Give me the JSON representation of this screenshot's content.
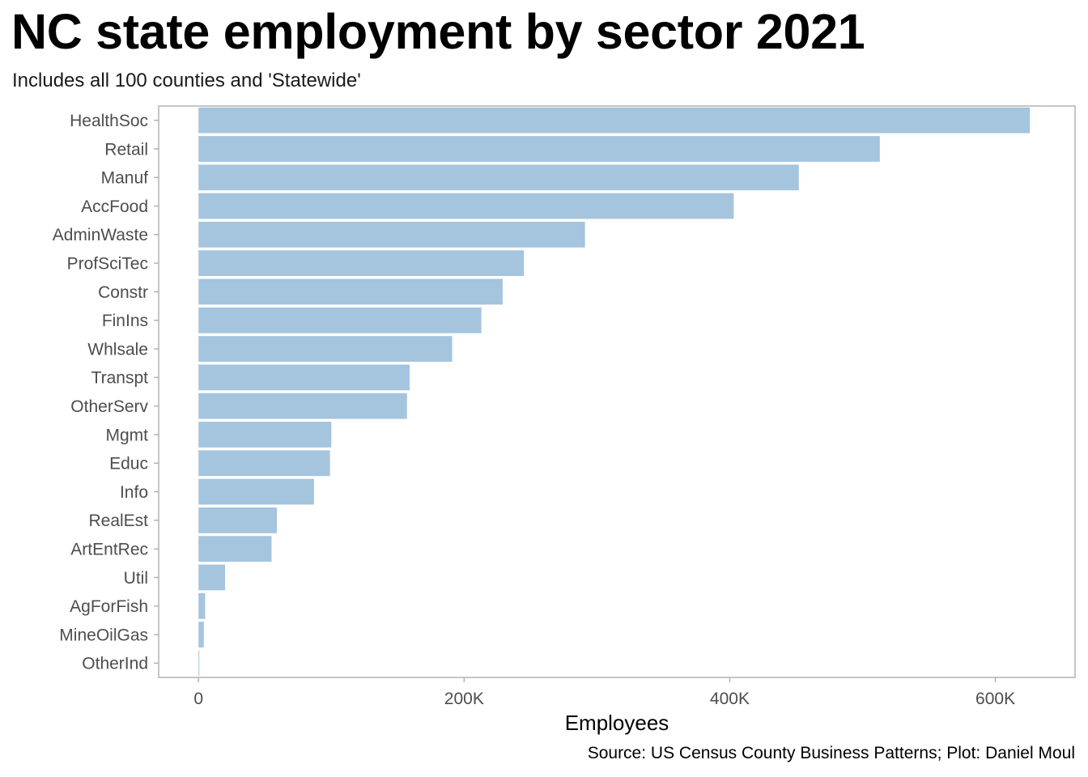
{
  "chart_data": {
    "type": "bar",
    "orientation": "horizontal",
    "title": "NC state employment by sector 2021",
    "subtitle": "Includes all 100 counties and 'Statewide'",
    "xlabel": "Employees",
    "ylabel": "",
    "caption": "Source: US Census County Business Patterns; Plot: Daniel Moul",
    "categories": [
      "HealthSoc",
      "Retail",
      "Manuf",
      "AccFood",
      "AdminWaste",
      "ProfSciTec",
      "Constr",
      "FinIns",
      "Whlsale",
      "Transpt",
      "OtherServ",
      "Mgmt",
      "Educ",
      "Info",
      "RealEst",
      "ArtEntRec",
      "Util",
      "AgForFish",
      "MineOilGas",
      "OtherInd"
    ],
    "values": [
      626000,
      513000,
      452000,
      403000,
      291000,
      245000,
      229000,
      213000,
      191000,
      159000,
      157000,
      100000,
      99000,
      87000,
      59000,
      55000,
      20000,
      5000,
      4000,
      500
    ],
    "xlim": [
      -30000,
      660000
    ],
    "x_ticks": [
      0,
      200000,
      400000,
      600000
    ],
    "x_tick_labels": [
      "0",
      "200K",
      "400K",
      "600K"
    ],
    "bar_color": "#a5c4de",
    "grid": false,
    "legend": "none"
  }
}
